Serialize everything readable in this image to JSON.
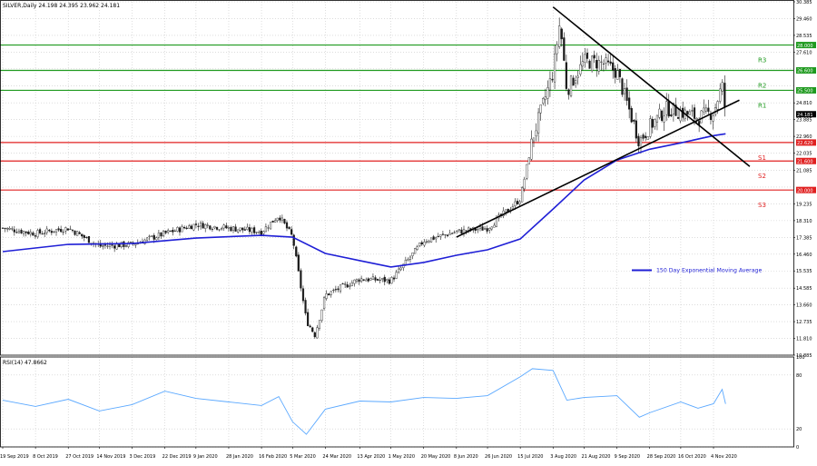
{
  "header": {
    "symbol_line": "SILVER,Daily  24.198 24.395 23.962 24.181",
    "rsi_label": "RSI(14) 47.8662"
  },
  "colors": {
    "candle": "#1a1a1a",
    "ema": "#1f1fd6",
    "resistance": "#1f9a1f",
    "support": "#e02020",
    "trendline": "#000000",
    "rsi": "#5aa8ff",
    "grid": "#c8c8c8"
  },
  "chart_data": [
    {
      "type": "line",
      "name_hint": "price-panel",
      "ylim": [
        10.885,
        30.385
      ],
      "y_ticks": [
        30.385,
        29.46,
        28.535,
        27.61,
        26.685,
        25.76,
        24.81,
        23.885,
        22.96,
        22.035,
        21.085,
        20.16,
        19.235,
        18.31,
        17.385,
        16.46,
        15.535,
        14.585,
        13.66,
        12.735,
        11.81,
        10.885
      ],
      "x_labels": [
        "19 Sep 2019",
        "8 Oct 2019",
        "27 Oct 2019",
        "14 Nov 2019",
        "3 Dec 2019",
        "22 Dec 2019",
        "9 Jan 2020",
        "28 Jan 2020",
        "16 Feb 2020",
        "5 Mar 2020",
        "24 Mar 2020",
        "13 Apr 2020",
        "1 May 2020",
        "20 May 2020",
        "8 Jun 2020",
        "26 Jun 2020",
        "15 Jul 2020",
        "3 Aug 2020",
        "21 Aug 2020",
        "9 Sep 2020",
        "28 Sep 2020",
        "16 Oct 2020",
        "4 Nov 2020"
      ],
      "last_price_label": "24.181",
      "levels": [
        {
          "label": "R3",
          "value": 28.0,
          "tag": "28.000",
          "kind": "resistance"
        },
        {
          "label": "R2",
          "value": 26.6,
          "tag": "26.600",
          "kind": "resistance"
        },
        {
          "label": "R1",
          "value": 25.5,
          "tag": "25.500",
          "kind": "resistance"
        },
        {
          "label": "S1",
          "value": 22.62,
          "tag": "22.620",
          "kind": "support"
        },
        {
          "label": "S2",
          "value": 21.6,
          "tag": "21.600",
          "kind": "support"
        },
        {
          "label": "S3",
          "value": 20.0,
          "tag": "20.000",
          "kind": "support"
        }
      ],
      "trendlines": [
        {
          "from": [
            "8 Jun 2020",
            17.4
          ],
          "to": [
            "19 Nov 2020",
            24.96
          ]
        },
        {
          "from": [
            "3 Aug 2020",
            30.1
          ],
          "to": [
            "25 Nov 2020",
            21.3
          ]
        }
      ],
      "close_series": {
        "x": [
          "19 Sep 2019",
          "8 Oct 2019",
          "27 Oct 2019",
          "14 Nov 2019",
          "3 Dec 2019",
          "22 Dec 2019",
          "9 Jan 2020",
          "28 Jan 2020",
          "16 Feb 2020",
          "26 Feb 2020",
          "5 Mar 2020",
          "13 Mar 2020",
          "18 Mar 2020",
          "24 Mar 2020",
          "13 Apr 2020",
          "1 May 2020",
          "20 May 2020",
          "8 Jun 2020",
          "26 Jun 2020",
          "15 Jul 2020",
          "22 Jul 2020",
          "3 Aug 2020",
          "7 Aug 2020",
          "11 Aug 2020",
          "21 Aug 2020",
          "1 Sep 2020",
          "9 Sep 2020",
          "22 Sep 2020",
          "28 Sep 2020",
          "8 Oct 2020",
          "16 Oct 2020",
          "26 Oct 2020",
          "4 Nov 2020",
          "9 Nov 2020",
          "11 Nov 2020"
        ],
        "values": [
          17.9,
          17.6,
          17.9,
          16.9,
          17.0,
          17.6,
          18.1,
          17.9,
          17.7,
          18.6,
          17.4,
          12.8,
          12.0,
          14.2,
          15.1,
          15.0,
          17.2,
          17.7,
          17.9,
          19.5,
          22.8,
          26.5,
          29.3,
          25.5,
          27.1,
          27.0,
          26.5,
          22.7,
          23.5,
          24.5,
          24.3,
          24.0,
          24.3,
          25.8,
          24.2
        ]
      },
      "series": [
        {
          "name": "150 Day Exponential Moving Average",
          "x": [
            "19 Sep 2019",
            "27 Oct 2019",
            "3 Dec 2019",
            "9 Jan 2020",
            "16 Feb 2020",
            "5 Mar 2020",
            "24 Mar 2020",
            "13 Apr 2020",
            "1 May 2020",
            "20 May 2020",
            "8 Jun 2020",
            "26 Jun 2020",
            "15 Jul 2020",
            "3 Aug 2020",
            "21 Aug 2020",
            "9 Sep 2020",
            "28 Sep 2020",
            "16 Oct 2020",
            "4 Nov 2020",
            "11 Nov 2020"
          ],
          "values": [
            16.6,
            17.0,
            17.05,
            17.35,
            17.5,
            17.4,
            16.5,
            16.1,
            15.75,
            16.0,
            16.4,
            16.7,
            17.3,
            18.95,
            20.55,
            21.65,
            22.25,
            22.6,
            23.0,
            23.1
          ]
        }
      ]
    },
    {
      "type": "line",
      "name_hint": "rsi-panel",
      "ylim": [
        0,
        100
      ],
      "y_ticks": [
        100,
        80,
        20,
        0
      ],
      "series": [
        {
          "name": "RSI(14)",
          "x": [
            "19 Sep 2019",
            "8 Oct 2019",
            "27 Oct 2019",
            "14 Nov 2019",
            "3 Dec 2019",
            "22 Dec 2019",
            "9 Jan 2020",
            "28 Jan 2020",
            "16 Feb 2020",
            "26 Feb 2020",
            "5 Mar 2020",
            "13 Mar 2020",
            "24 Mar 2020",
            "13 Apr 2020",
            "1 May 2020",
            "20 May 2020",
            "8 Jun 2020",
            "26 Jun 2020",
            "15 Jul 2020",
            "22 Jul 2020",
            "3 Aug 2020",
            "11 Aug 2020",
            "21 Aug 2020",
            "9 Sep 2020",
            "22 Sep 2020",
            "28 Sep 2020",
            "16 Oct 2020",
            "26 Oct 2020",
            "4 Nov 2020",
            "9 Nov 2020",
            "11 Nov 2020"
          ],
          "values": [
            52,
            45,
            53,
            40,
            47,
            62,
            54,
            50,
            46,
            56,
            28,
            14,
            42,
            51,
            50,
            55,
            54,
            57,
            78,
            87,
            85,
            52,
            55,
            57,
            33,
            38,
            50,
            43,
            48,
            64,
            47.87
          ]
        }
      ]
    }
  ],
  "legend": {
    "ema_label": "150 Day Exponential Moving Average"
  }
}
